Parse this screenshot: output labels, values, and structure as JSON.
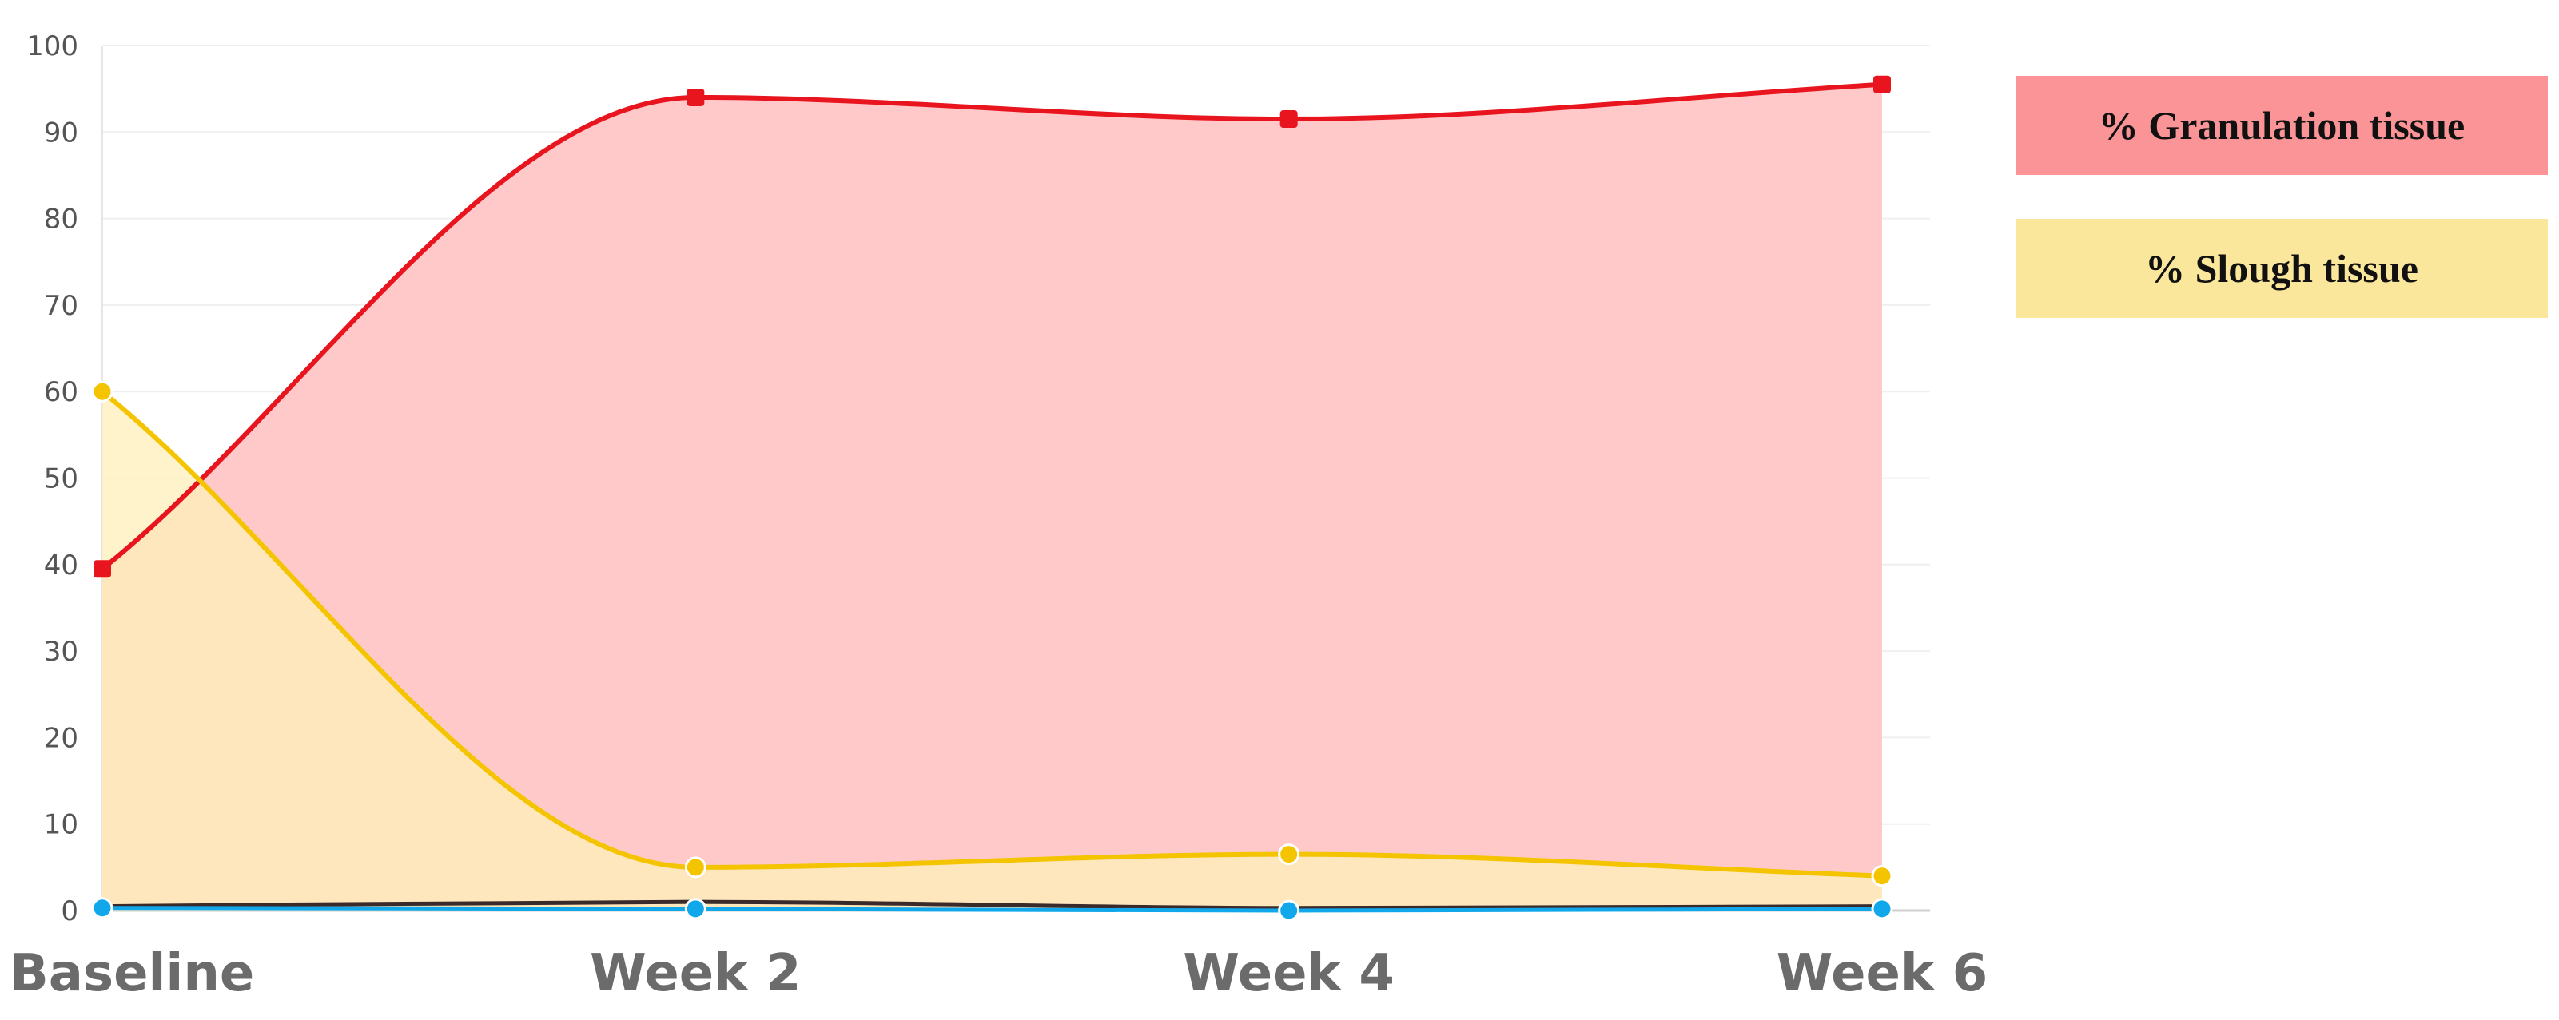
{
  "chart_data": {
    "type": "area",
    "categories": [
      "Baseline",
      "Week 2",
      "Week 4",
      "Week 6"
    ],
    "ylim": [
      0,
      100
    ],
    "yticks": [
      0,
      10,
      20,
      30,
      40,
      50,
      60,
      70,
      80,
      90,
      100
    ],
    "grid": true,
    "legend_position": "right",
    "series": [
      {
        "name": "% Granulation tissue",
        "values": [
          39.5,
          94,
          91.5,
          95.5
        ],
        "color": "#e8141e",
        "fill": "#ffc9ca"
      },
      {
        "name": "% Slough tissue",
        "values": [
          60,
          5,
          6.5,
          4
        ],
        "color": "#f5c400",
        "fill": "#fdefb8"
      },
      {
        "values": [
          0.5,
          1,
          0.3,
          0.5
        ],
        "color": "#3a2a2a"
      },
      {
        "values": [
          0.3,
          0.2,
          0,
          0.2
        ],
        "color": "#10a8ea"
      }
    ]
  }
}
